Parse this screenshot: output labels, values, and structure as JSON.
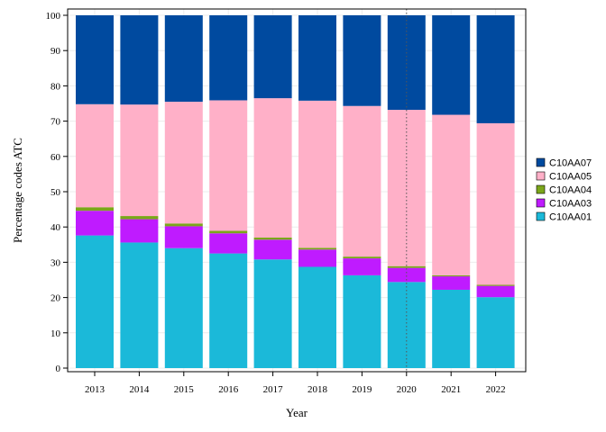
{
  "chart_data": {
    "type": "bar",
    "stacked": true,
    "xlabel": "Year",
    "ylabel": "Percentage codes ATC",
    "ylim": [
      0,
      100
    ],
    "yticks": [
      0,
      10,
      20,
      30,
      40,
      50,
      60,
      70,
      80,
      90,
      100
    ],
    "grid": true,
    "legend_position": "right",
    "reference_line": {
      "x": "2020",
      "style": "dotted"
    },
    "categories": [
      "2013",
      "2014",
      "2015",
      "2016",
      "2017",
      "2018",
      "2019",
      "2020",
      "2021",
      "2022"
    ],
    "series": [
      {
        "name": "C10AA01",
        "color": "#1BB9D9",
        "values": [
          37.6,
          35.6,
          34.0,
          32.5,
          30.8,
          28.7,
          26.3,
          24.4,
          22.2,
          20.1
        ]
      },
      {
        "name": "C10AA03",
        "color": "#BF1BFF",
        "values": [
          7.0,
          6.6,
          6.2,
          5.7,
          5.6,
          4.9,
          4.8,
          4.0,
          3.8,
          3.2
        ]
      },
      {
        "name": "C10AA04",
        "color": "#7BA61A",
        "values": [
          1.0,
          0.9,
          0.8,
          0.7,
          0.6,
          0.5,
          0.5,
          0.5,
          0.3,
          0.3
        ]
      },
      {
        "name": "C10AA05",
        "color": "#FFB0C8",
        "values": [
          29.2,
          31.6,
          34.5,
          37.0,
          39.5,
          41.7,
          42.7,
          44.3,
          45.5,
          45.8
        ]
      },
      {
        "name": "C10AA07",
        "color": "#004A9F",
        "values": [
          25.2,
          25.3,
          24.5,
          24.1,
          23.5,
          24.2,
          25.7,
          26.8,
          28.2,
          30.6
        ]
      }
    ]
  }
}
